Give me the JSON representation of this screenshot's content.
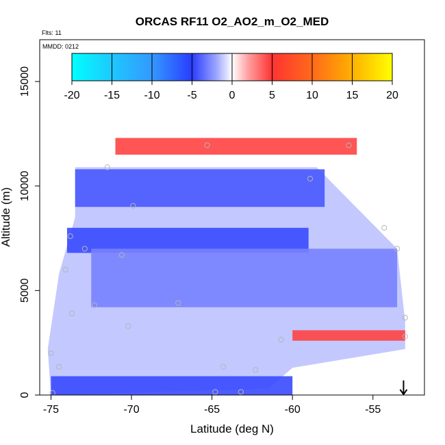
{
  "chart_data": {
    "type": "heatmap",
    "title": "ORCAS RF11 O2_AO2_m_O2_MED",
    "annotations": [
      "Flts: 11",
      "MMDD: 0212"
    ],
    "xlabel": "Latitude (deg N)",
    "ylabel": "Altitude (m)",
    "xlim": [
      -75.7,
      -51.8
    ],
    "ylim": [
      0,
      17000
    ],
    "x_ticks": [
      -75,
      -70,
      -65,
      -60,
      -55
    ],
    "x_tick_labels": [
      "-75",
      "-70",
      "-65",
      "-60",
      "-55"
    ],
    "y_ticks": [
      0,
      5000,
      10000,
      15000
    ],
    "y_tick_labels": [
      "0",
      "5000",
      "10000",
      "15000"
    ],
    "colorbar": {
      "range": [
        -20,
        20
      ],
      "ticks": [
        -20,
        -15,
        -10,
        -5,
        0,
        5,
        10,
        15,
        20
      ],
      "tick_labels": [
        "-20",
        "-15",
        "-10",
        "-5",
        "0",
        "5",
        "10",
        "15",
        "20"
      ],
      "colors": [
        "#00ffff",
        "#3399ff",
        "#2a3cff",
        "#ffffff",
        "#ff3333",
        "#ff9900",
        "#ffff00"
      ],
      "placement": "top inset"
    },
    "regions": [
      {
        "feature": "upper blue band",
        "x": [
          -73.5,
          -58.0
        ],
        "y": [
          9000,
          10800
        ],
        "value": -8
      },
      {
        "feature": "mid-upper strong blue",
        "x": [
          -74.0,
          -59.0
        ],
        "y": [
          6800,
          8000
        ],
        "value": -9
      },
      {
        "feature": "mid wedge blue",
        "x": [
          -72.5,
          -53.5
        ],
        "y": [
          4200,
          7000
        ],
        "value": -5
      },
      {
        "feature": "low blue band",
        "x": [
          -75.0,
          -60.0
        ],
        "y": [
          0,
          900
        ],
        "value": -9
      },
      {
        "feature": "upper red edge",
        "x": [
          -71.0,
          -56.0
        ],
        "y": [
          11500,
          12300
        ],
        "value": 8
      },
      {
        "feature": "low red band",
        "x": [
          -60.0,
          -53.0
        ],
        "y": [
          2600,
          3100
        ],
        "value": 8
      }
    ],
    "flight_points": [
      {
        "x": -65.3,
        "y": 11950
      },
      {
        "x": -56.5,
        "y": 11950
      },
      {
        "x": -71.5,
        "y": 10900
      },
      {
        "x": -58.9,
        "y": 10350
      },
      {
        "x": -69.9,
        "y": 9050
      },
      {
        "x": -54.3,
        "y": 8000
      },
      {
        "x": -73.8,
        "y": 7600
      },
      {
        "x": -72.9,
        "y": 7000
      },
      {
        "x": -70.6,
        "y": 6700
      },
      {
        "x": -53.5,
        "y": 7000
      },
      {
        "x": -74.1,
        "y": 6000
      },
      {
        "x": -72.3,
        "y": 4300
      },
      {
        "x": -67.1,
        "y": 4400
      },
      {
        "x": -73.7,
        "y": 3900
      },
      {
        "x": -70.2,
        "y": 3300
      },
      {
        "x": -53.0,
        "y": 3700
      },
      {
        "x": -53.0,
        "y": 2800
      },
      {
        "x": -60.7,
        "y": 2650
      },
      {
        "x": -75.0,
        "y": 2000
      },
      {
        "x": -74.5,
        "y": 1350
      },
      {
        "x": -64.3,
        "y": 1350
      },
      {
        "x": -62.3,
        "y": 1200
      },
      {
        "x": -64.8,
        "y": 150
      },
      {
        "x": -63.2,
        "y": 150
      },
      {
        "x": -74.9,
        "y": 100
      }
    ],
    "arrow_marker": {
      "x": -53.1,
      "y_top": 700,
      "y_bottom": 0
    }
  }
}
